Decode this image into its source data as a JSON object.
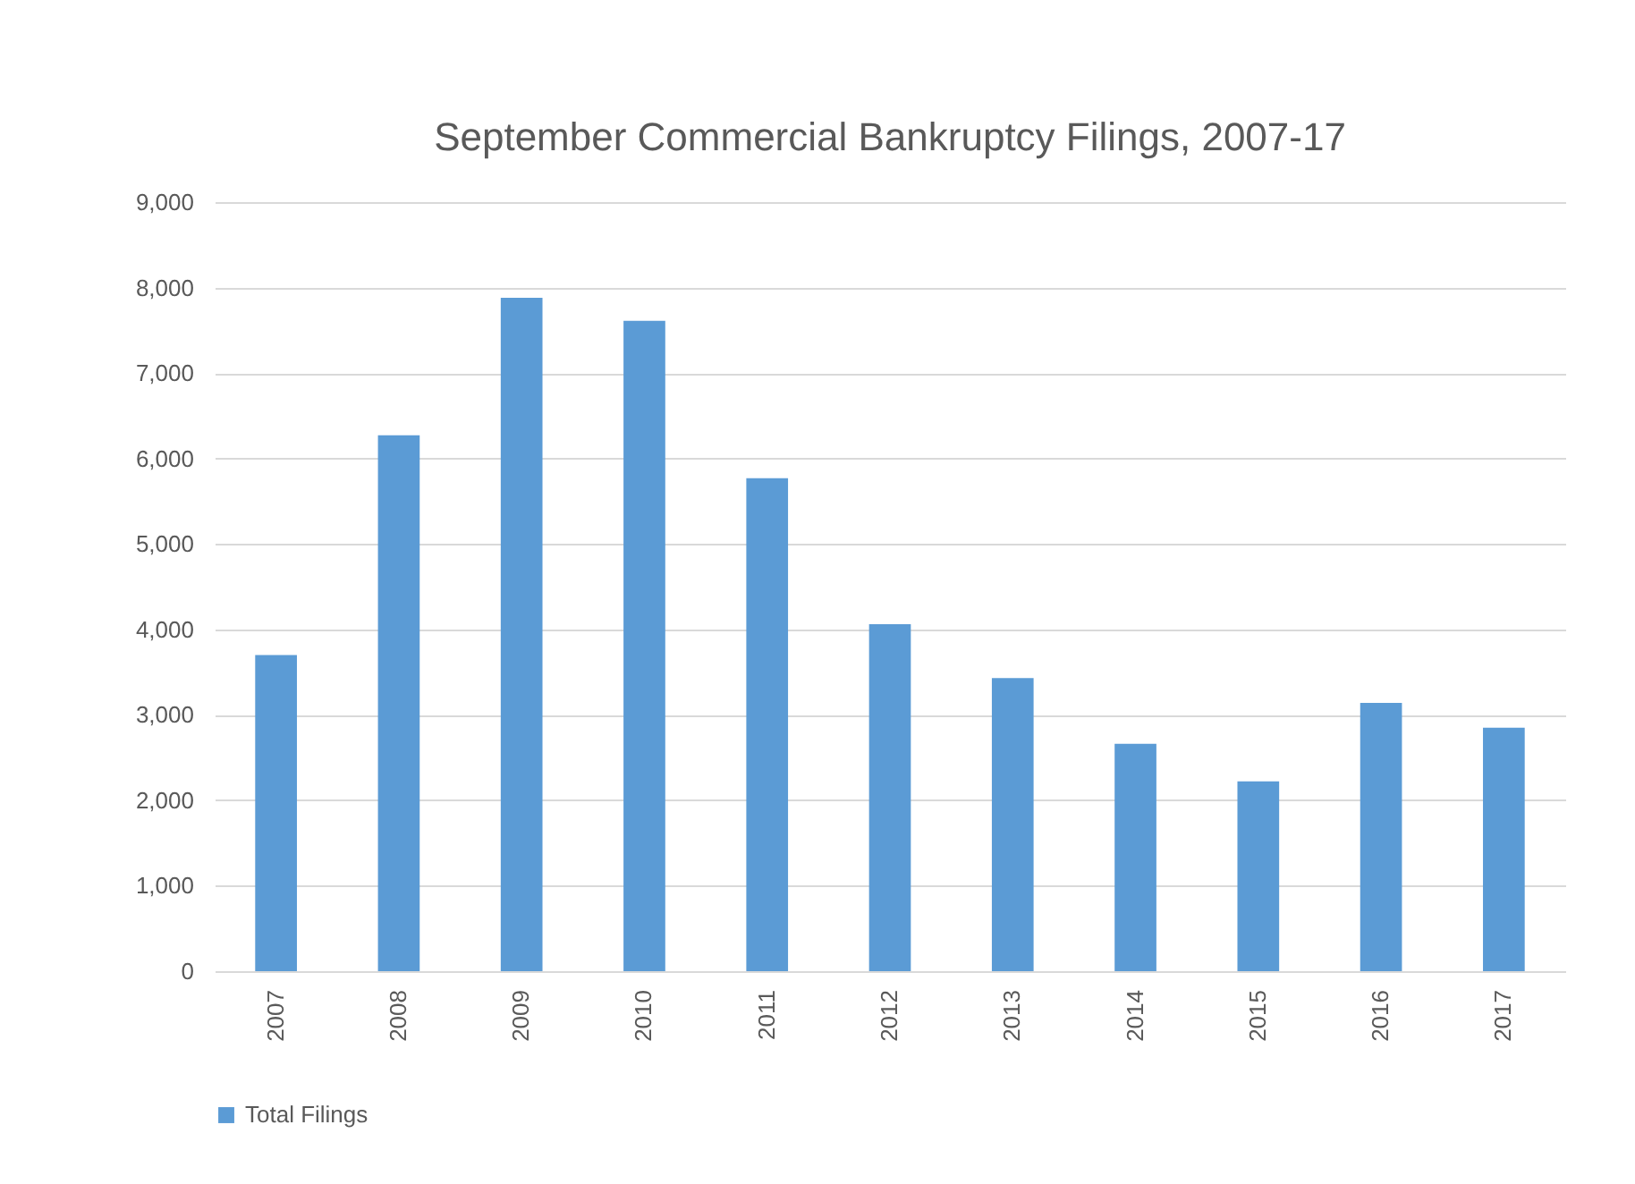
{
  "chart_data": {
    "type": "bar",
    "title": "September Commercial Bankruptcy Filings, 2007-17",
    "categories": [
      "2007",
      "2008",
      "2009",
      "2010",
      "2011",
      "2012",
      "2013",
      "2014",
      "2015",
      "2016",
      "2017"
    ],
    "series": [
      {
        "name": "Total Filings",
        "color": "#5b9bd5",
        "values": [
          3700,
          6270,
          7880,
          7610,
          5770,
          4060,
          3430,
          2660,
          2220,
          3140,
          2850
        ]
      }
    ],
    "ylim": [
      0,
      9000
    ],
    "yticks": [
      {
        "value": 0,
        "label": "0"
      },
      {
        "value": 1000,
        "label": "1,000"
      },
      {
        "value": 2000,
        "label": "2,000"
      },
      {
        "value": 3000,
        "label": "3,000"
      },
      {
        "value": 4000,
        "label": "4,000"
      },
      {
        "value": 5000,
        "label": "5,000"
      },
      {
        "value": 6000,
        "label": "6,000"
      },
      {
        "value": 7000,
        "label": "7,000"
      },
      {
        "value": 8000,
        "label": "8,000"
      },
      {
        "value": 9000,
        "label": "9,000"
      }
    ],
    "grid": "y",
    "legend": "bottom"
  }
}
